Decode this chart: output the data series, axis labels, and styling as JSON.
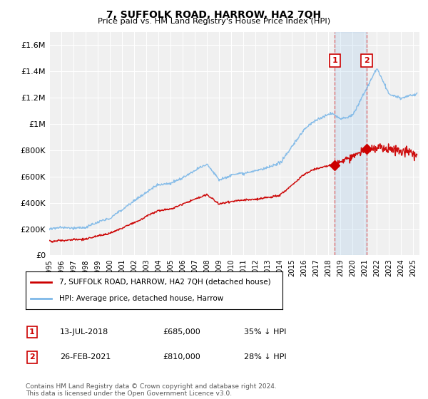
{
  "title": "7, SUFFOLK ROAD, HARROW, HA2 7QH",
  "subtitle": "Price paid vs. HM Land Registry's House Price Index (HPI)",
  "hpi_color": "#7db8e8",
  "price_color": "#cc0000",
  "background_color": "#ffffff",
  "plot_bg_color": "#f0f0f0",
  "grid_color": "#ffffff",
  "ylim": [
    0,
    1700000
  ],
  "yticks": [
    0,
    200000,
    400000,
    600000,
    800000,
    1000000,
    1200000,
    1400000,
    1600000
  ],
  "ytick_labels": [
    "£0",
    "£200K",
    "£400K",
    "£600K",
    "£800K",
    "£1M",
    "£1.2M",
    "£1.4M",
    "£1.6M"
  ],
  "sale1_year": 2018.53,
  "sale1_price": 685000,
  "sale1_label": "13-JUL-2018",
  "sale1_price_str": "£685,000",
  "sale1_hpi_pct": "35% ↓ HPI",
  "sale2_year": 2021.15,
  "sale2_price": 810000,
  "sale2_label": "26-FEB-2021",
  "sale2_price_str": "£810,000",
  "sale2_hpi_pct": "28% ↓ HPI",
  "legend_line1": "7, SUFFOLK ROAD, HARROW, HA2 7QH (detached house)",
  "legend_line2": "HPI: Average price, detached house, Harrow",
  "footer": "Contains HM Land Registry data © Crown copyright and database right 2024.\nThis data is licensed under the Open Government Licence v3.0.",
  "xmin": 1995,
  "xmax": 2025.5
}
